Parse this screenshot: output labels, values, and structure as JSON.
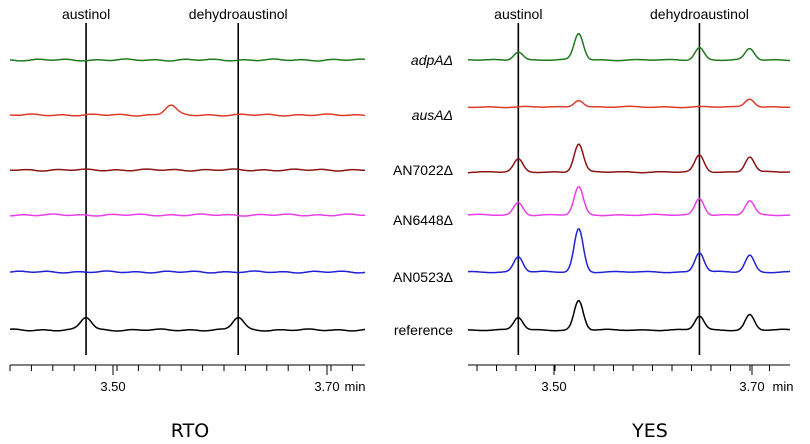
{
  "chart_data": [
    {
      "type": "line",
      "title": "RTO",
      "xunit": "min",
      "xticks": [
        "3.50",
        "3.70"
      ],
      "xrange": [
        3.38,
        3.8
      ],
      "annotations": [
        "austinol",
        "dehydroaustinol"
      ],
      "marker_x": [
        3.47,
        3.65
      ],
      "series": [
        {
          "name": "adpAΔ",
          "color": "#1e7a1e",
          "peaks": []
        },
        {
          "name": "ausAΔ",
          "color": "#e03a2a",
          "peaks": [
            [
              3.57,
              0.35
            ]
          ]
        },
        {
          "name": "AN7022Δ",
          "color": "#8b1414",
          "peaks": []
        },
        {
          "name": "AN6448Δ",
          "color": "#e83fe8",
          "peaks": []
        },
        {
          "name": "AN0523Δ",
          "color": "#2121d6",
          "peaks": []
        },
        {
          "name": "reference",
          "color": "#000000",
          "peaks": [
            [
              3.47,
              0.45
            ],
            [
              3.65,
              0.45
            ]
          ]
        }
      ]
    },
    {
      "type": "line",
      "title": "YES",
      "xunit": "min",
      "xticks": [
        "3.50",
        "3.70"
      ],
      "xrange": [
        3.42,
        3.74
      ],
      "annotations": [
        "austinol",
        "dehydroaustinol"
      ],
      "marker_x": [
        3.47,
        3.65
      ],
      "series": [
        {
          "name": "adpAΔ",
          "color": "#1e7a1e",
          "peaks": [
            [
              3.47,
              0.3
            ],
            [
              3.53,
              0.95
            ],
            [
              3.65,
              0.45
            ],
            [
              3.7,
              0.4
            ]
          ]
        },
        {
          "name": "ausAΔ",
          "color": "#e03a2a",
          "peaks": [
            [
              3.53,
              0.25
            ],
            [
              3.7,
              0.3
            ]
          ]
        },
        {
          "name": "AN7022Δ",
          "color": "#8b1414",
          "peaks": [
            [
              3.47,
              0.45
            ],
            [
              3.53,
              1.0
            ],
            [
              3.65,
              0.6
            ],
            [
              3.7,
              0.55
            ]
          ]
        },
        {
          "name": "AN6448Δ",
          "color": "#e83fe8",
          "peaks": [
            [
              3.47,
              0.45
            ],
            [
              3.53,
              1.0
            ],
            [
              3.65,
              0.6
            ],
            [
              3.7,
              0.5
            ]
          ]
        },
        {
          "name": "AN0523Δ",
          "color": "#2121d6",
          "peaks": [
            [
              3.47,
              0.55
            ],
            [
              3.53,
              1.55
            ],
            [
              3.65,
              0.7
            ],
            [
              3.7,
              0.6
            ]
          ]
        },
        {
          "name": "reference",
          "color": "#000000",
          "peaks": [
            [
              3.47,
              0.45
            ],
            [
              3.53,
              1.05
            ],
            [
              3.65,
              0.5
            ],
            [
              3.7,
              0.55
            ]
          ]
        }
      ]
    }
  ]
}
